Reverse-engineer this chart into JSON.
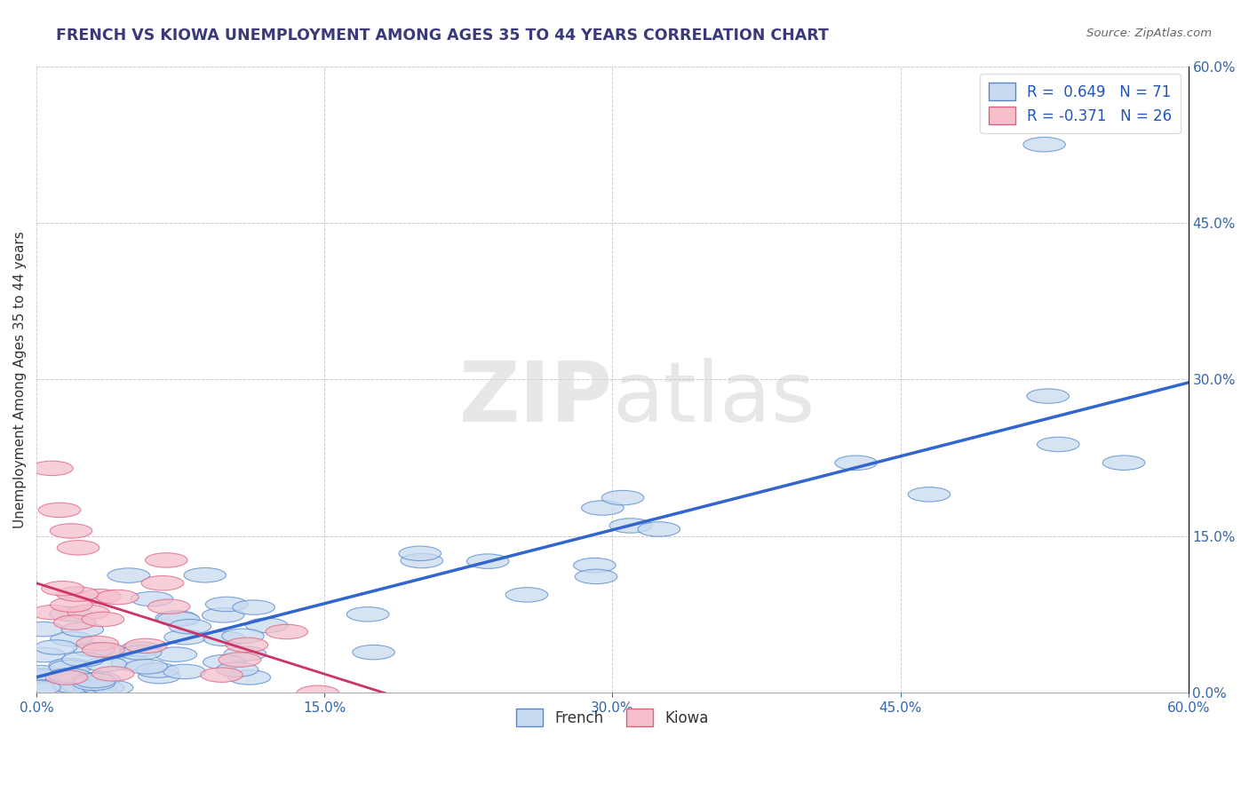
{
  "title": "FRENCH VS KIOWA UNEMPLOYMENT AMONG AGES 35 TO 44 YEARS CORRELATION CHART",
  "source": "Source: ZipAtlas.com",
  "ylabel": "Unemployment Among Ages 35 to 44 years",
  "xlim": [
    0.0,
    0.6
  ],
  "ylim": [
    0.0,
    0.6
  ],
  "xtick_labels": [
    "0.0%",
    "15.0%",
    "30.0%",
    "45.0%",
    "60.0%"
  ],
  "xtick_values": [
    0.0,
    0.15,
    0.3,
    0.45,
    0.6
  ],
  "ytick_labels_right": [
    "0.0%",
    "15.0%",
    "30.0%",
    "45.0%",
    "60.0%"
  ],
  "ytick_values": [
    0.0,
    0.15,
    0.3,
    0.45,
    0.6
  ],
  "french_face_color": "#c8daf0",
  "french_edge_color": "#5588cc",
  "kiowa_face_color": "#f5c0cc",
  "kiowa_edge_color": "#e06080",
  "french_line_color": "#3366cc",
  "kiowa_line_color": "#cc3366",
  "french_R": 0.649,
  "french_N": 71,
  "kiowa_R": -0.371,
  "kiowa_N": 26,
  "watermark": "ZIPatlas",
  "background_color": "#ffffff",
  "grid_color": "#cccccc",
  "title_color": "#3a3a7a",
  "axis_label_color": "#2255bb",
  "french_line_intercept": 0.015,
  "french_line_slope": 0.47,
  "kiowa_line_intercept": 0.105,
  "kiowa_line_slope": -0.58
}
